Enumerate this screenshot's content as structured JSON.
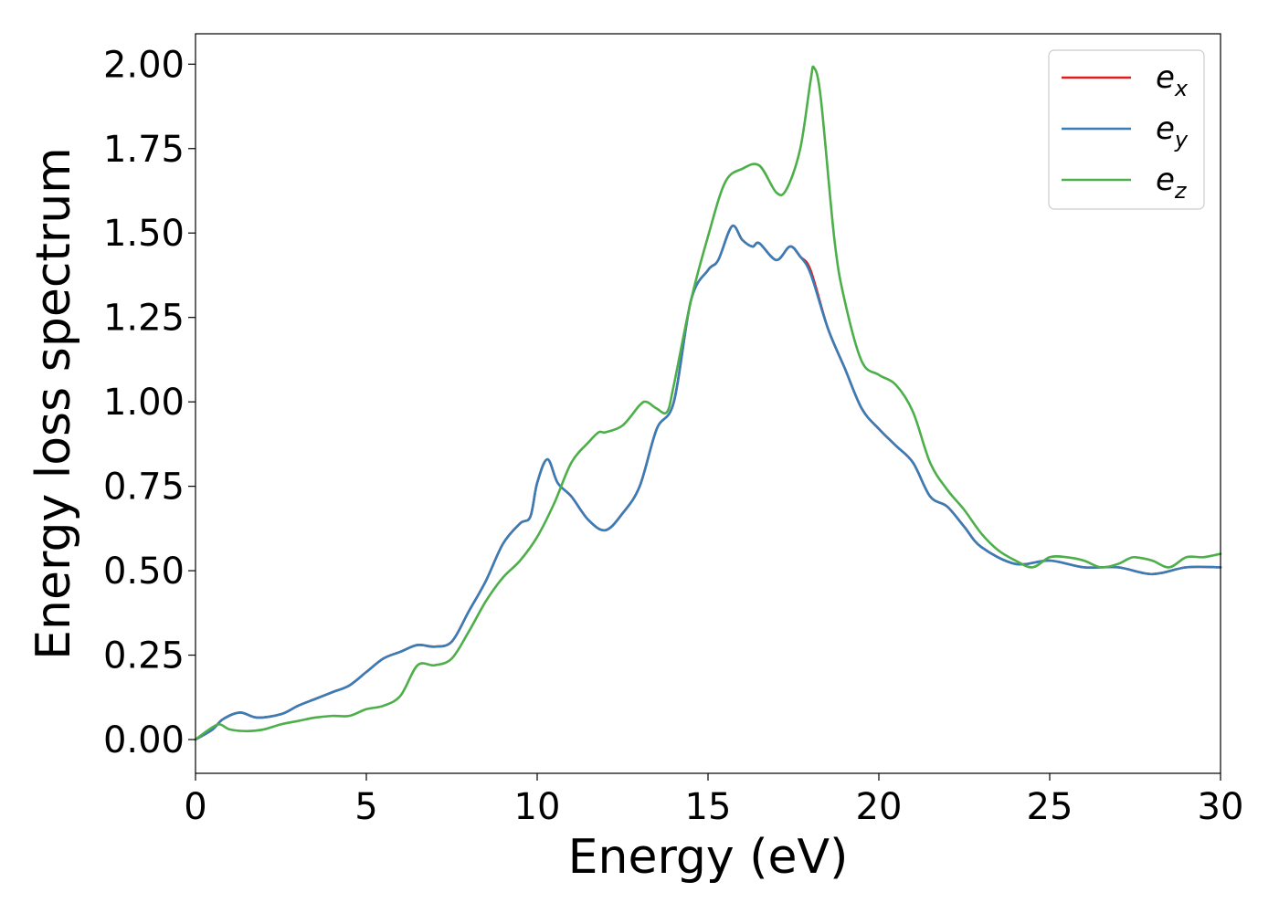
{
  "chart_data": {
    "type": "line",
    "xlabel": "Energy (eV)",
    "ylabel": "Energy loss spectrum",
    "xlim": [
      0,
      30
    ],
    "ylim": [
      -0.1,
      2.09
    ],
    "xticks": [
      0,
      5,
      10,
      15,
      20,
      25,
      30
    ],
    "xtick_labels": [
      "0",
      "5",
      "10",
      "15",
      "20",
      "25",
      "30"
    ],
    "yticks": [
      0,
      0.25,
      0.5,
      0.75,
      1.0,
      1.25,
      1.5,
      1.75,
      2.0
    ],
    "ytick_labels": [
      "0.00",
      "0.25",
      "0.50",
      "0.75",
      "1.00",
      "1.25",
      "1.50",
      "1.75",
      "2.00"
    ],
    "grid": false,
    "legend_position": "top-right",
    "series": [
      {
        "name": "e_x",
        "label_base": "e",
        "label_sub": "x",
        "color": "#e41a1c",
        "x": [
          0,
          0.5,
          0.8,
          1.3,
          1.8,
          2.5,
          3.0,
          3.5,
          4.0,
          4.5,
          5.0,
          5.5,
          6.0,
          6.5,
          7.0,
          7.5,
          8.0,
          8.5,
          9.0,
          9.5,
          9.8,
          10.0,
          10.3,
          10.6,
          11.0,
          11.5,
          12.0,
          12.5,
          13.0,
          13.5,
          14.0,
          14.5,
          15.0,
          15.3,
          15.7,
          16.0,
          16.3,
          16.5,
          17.0,
          17.4,
          17.7,
          18.0,
          18.5,
          19.0,
          19.5,
          20.0,
          20.5,
          21.0,
          21.5,
          22.0,
          22.5,
          23.0,
          24.0,
          25.0,
          26.0,
          27.0,
          28.0,
          29.0,
          30.0
        ],
        "values": [
          0.0,
          0.03,
          0.06,
          0.08,
          0.065,
          0.075,
          0.1,
          0.12,
          0.14,
          0.16,
          0.2,
          0.24,
          0.26,
          0.28,
          0.275,
          0.29,
          0.38,
          0.47,
          0.58,
          0.64,
          0.66,
          0.76,
          0.83,
          0.76,
          0.72,
          0.65,
          0.62,
          0.67,
          0.75,
          0.92,
          1.0,
          1.3,
          1.39,
          1.42,
          1.52,
          1.48,
          1.46,
          1.47,
          1.42,
          1.46,
          1.43,
          1.39,
          1.22,
          1.1,
          0.98,
          0.92,
          0.87,
          0.82,
          0.72,
          0.69,
          0.63,
          0.57,
          0.52,
          0.53,
          0.51,
          0.51,
          0.49,
          0.51,
          0.51
        ]
      },
      {
        "name": "e_y",
        "label_base": "e",
        "label_sub": "y",
        "color": "#377eb8",
        "x": [
          0,
          0.5,
          0.8,
          1.3,
          1.8,
          2.5,
          3.0,
          3.5,
          4.0,
          4.5,
          5.0,
          5.5,
          6.0,
          6.5,
          7.0,
          7.5,
          8.0,
          8.5,
          9.0,
          9.5,
          9.8,
          10.0,
          10.3,
          10.6,
          11.0,
          11.5,
          12.0,
          12.5,
          13.0,
          13.5,
          14.0,
          14.5,
          15.0,
          15.3,
          15.7,
          16.0,
          16.3,
          16.5,
          17.0,
          17.4,
          17.7,
          18.0,
          18.5,
          19.0,
          19.5,
          20.0,
          20.5,
          21.0,
          21.5,
          22.0,
          22.5,
          23.0,
          24.0,
          25.0,
          26.0,
          27.0,
          28.0,
          29.0,
          30.0
        ],
        "values": [
          0.0,
          0.03,
          0.06,
          0.08,
          0.065,
          0.075,
          0.1,
          0.12,
          0.14,
          0.16,
          0.2,
          0.24,
          0.26,
          0.28,
          0.275,
          0.29,
          0.38,
          0.47,
          0.58,
          0.64,
          0.66,
          0.76,
          0.83,
          0.76,
          0.72,
          0.65,
          0.62,
          0.67,
          0.75,
          0.92,
          1.0,
          1.3,
          1.39,
          1.42,
          1.52,
          1.48,
          1.46,
          1.47,
          1.42,
          1.46,
          1.43,
          1.38,
          1.22,
          1.1,
          0.98,
          0.92,
          0.87,
          0.82,
          0.72,
          0.69,
          0.63,
          0.57,
          0.52,
          0.53,
          0.51,
          0.51,
          0.49,
          0.51,
          0.51
        ]
      },
      {
        "name": "e_z",
        "label_base": "e",
        "label_sub": "z",
        "color": "#4daf4a",
        "x": [
          0,
          0.4,
          0.7,
          1.0,
          1.5,
          2.0,
          2.5,
          3.0,
          3.5,
          4.0,
          4.5,
          5.0,
          5.5,
          6.0,
          6.5,
          7.0,
          7.5,
          8.0,
          8.5,
          9.0,
          9.5,
          10.0,
          10.5,
          11.0,
          11.5,
          11.8,
          12.0,
          12.5,
          13.0,
          13.2,
          13.5,
          13.8,
          14.0,
          14.5,
          15.0,
          15.5,
          16.0,
          16.5,
          17.0,
          17.3,
          17.7,
          18.0,
          18.1,
          18.3,
          18.7,
          19.0,
          19.5,
          20.0,
          20.5,
          21.0,
          21.5,
          22.0,
          22.5,
          23.0,
          23.5,
          24.0,
          24.5,
          25.0,
          25.5,
          26.0,
          26.5,
          27.0,
          27.3,
          27.5,
          28.0,
          28.5,
          29.0,
          29.5,
          30.0
        ],
        "values": [
          0.0,
          0.03,
          0.045,
          0.03,
          0.025,
          0.03,
          0.045,
          0.055,
          0.065,
          0.07,
          0.07,
          0.09,
          0.1,
          0.13,
          0.22,
          0.22,
          0.24,
          0.32,
          0.41,
          0.48,
          0.53,
          0.6,
          0.7,
          0.82,
          0.88,
          0.91,
          0.91,
          0.93,
          0.99,
          1.0,
          0.98,
          0.97,
          1.05,
          1.3,
          1.49,
          1.65,
          1.69,
          1.7,
          1.62,
          1.63,
          1.75,
          1.95,
          1.99,
          1.9,
          1.48,
          1.3,
          1.12,
          1.08,
          1.05,
          0.97,
          0.82,
          0.74,
          0.68,
          0.61,
          0.56,
          0.53,
          0.51,
          0.54,
          0.54,
          0.53,
          0.51,
          0.52,
          0.535,
          0.54,
          0.53,
          0.51,
          0.54,
          0.54,
          0.55
        ]
      }
    ]
  }
}
